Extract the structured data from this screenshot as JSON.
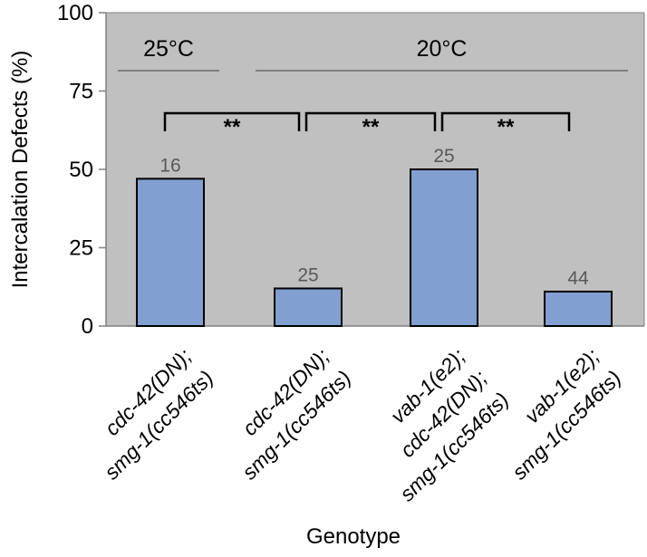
{
  "chart_data": {
    "type": "bar",
    "title": "",
    "xlabel": "Genotype",
    "ylabel": "Intercalation Defects (%)",
    "ylim": [
      0,
      100
    ],
    "yticks": [
      "0",
      "25",
      "50",
      "75",
      "100"
    ],
    "categories": [
      [
        "cdc-42(DN);",
        "smg-1(cc546ts)"
      ],
      [
        "cdc-42(DN);",
        "smg-1(cc546ts)"
      ],
      [
        "vab-1(e2);",
        "cdc-42(DN);",
        "smg-1(cc546ts)"
      ],
      [
        "vab-1(e2);",
        "smg-1(cc546ts)"
      ]
    ],
    "values": [
      47,
      12,
      50,
      11
    ],
    "n_labels": [
      "16",
      "25",
      "25",
      "44"
    ],
    "temperature_groups": [
      {
        "label": "25°C",
        "from": 0,
        "to": 0
      },
      {
        "label": "20°C",
        "from": 1,
        "to": 3
      }
    ],
    "significance": [
      {
        "from": 0,
        "to": 1,
        "label": "**"
      },
      {
        "from": 1,
        "to": 2,
        "label": "**"
      },
      {
        "from": 2,
        "to": 3,
        "label": "**"
      }
    ],
    "grid": false,
    "colors": {
      "plot_background": "#c0c0c0",
      "bar_fill": "#819fd1",
      "bar_stroke": "#000000",
      "group_line": "#808080",
      "data_label": "#595959"
    }
  }
}
